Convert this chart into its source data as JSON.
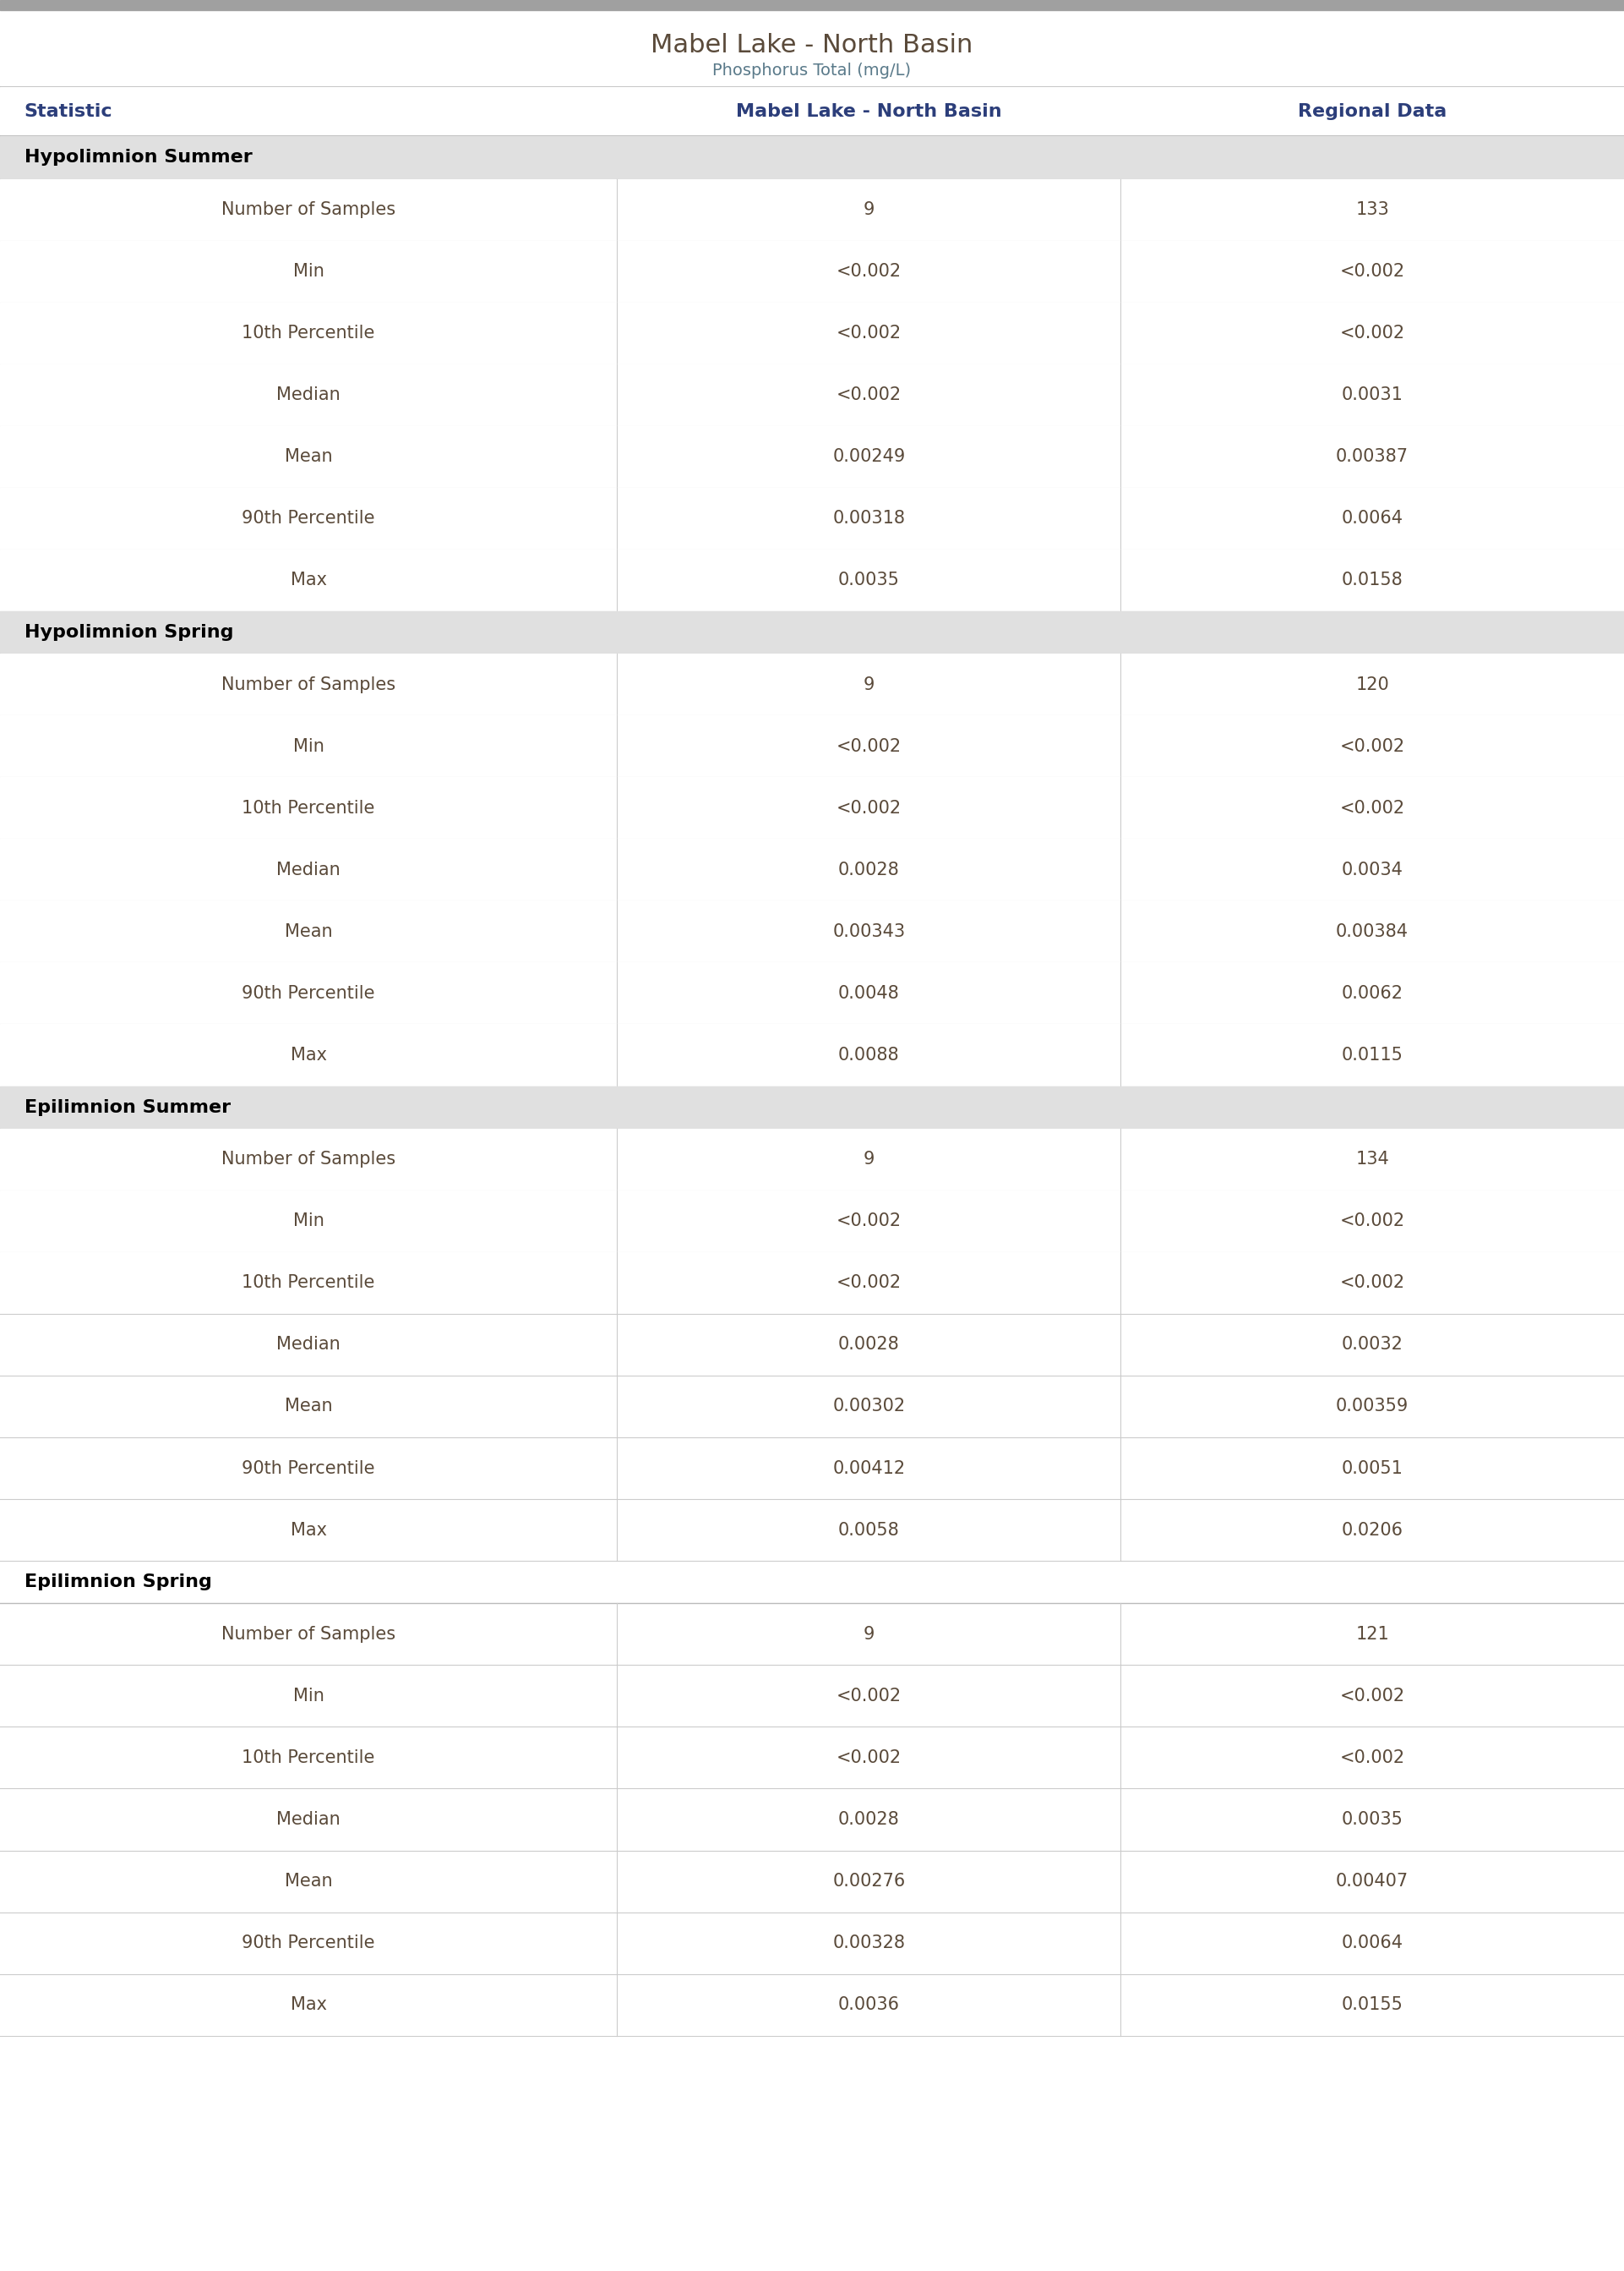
{
  "title": "Mabel Lake - North Basin",
  "subtitle": "Phosphorus Total (mg/L)",
  "col_headers": [
    "Statistic",
    "Mabel Lake - North Basin",
    "Regional Data"
  ],
  "sections": [
    {
      "name": "Hypolimnion Summer",
      "rows": [
        [
          "Number of Samples",
          "9",
          "133"
        ],
        [
          "Min",
          "<0.002",
          "<0.002"
        ],
        [
          "10th Percentile",
          "<0.002",
          "<0.002"
        ],
        [
          "Median",
          "<0.002",
          "0.0031"
        ],
        [
          "Mean",
          "0.00249",
          "0.00387"
        ],
        [
          "90th Percentile",
          "0.00318",
          "0.0064"
        ],
        [
          "Max",
          "0.0035",
          "0.0158"
        ]
      ]
    },
    {
      "name": "Hypolimnion Spring",
      "rows": [
        [
          "Number of Samples",
          "9",
          "120"
        ],
        [
          "Min",
          "<0.002",
          "<0.002"
        ],
        [
          "10th Percentile",
          "<0.002",
          "<0.002"
        ],
        [
          "Median",
          "0.0028",
          "0.0034"
        ],
        [
          "Mean",
          "0.00343",
          "0.00384"
        ],
        [
          "90th Percentile",
          "0.0048",
          "0.0062"
        ],
        [
          "Max",
          "0.0088",
          "0.0115"
        ]
      ]
    },
    {
      "name": "Epilimnion Summer",
      "rows": [
        [
          "Number of Samples",
          "9",
          "134"
        ],
        [
          "Min",
          "<0.002",
          "<0.002"
        ],
        [
          "10th Percentile",
          "<0.002",
          "<0.002"
        ],
        [
          "Median",
          "0.0028",
          "0.0032"
        ],
        [
          "Mean",
          "0.00302",
          "0.00359"
        ],
        [
          "90th Percentile",
          "0.00412",
          "0.0051"
        ],
        [
          "Max",
          "0.0058",
          "0.0206"
        ]
      ]
    },
    {
      "name": "Epilimnion Spring",
      "rows": [
        [
          "Number of Samples",
          "9",
          "121"
        ],
        [
          "Min",
          "<0.002",
          "<0.002"
        ],
        [
          "10th Percentile",
          "<0.002",
          "<0.002"
        ],
        [
          "Median",
          "0.0028",
          "0.0035"
        ],
        [
          "Mean",
          "0.00276",
          "0.00407"
        ],
        [
          "90th Percentile",
          "0.00328",
          "0.0064"
        ],
        [
          "Max",
          "0.0036",
          "0.0155"
        ]
      ]
    }
  ],
  "top_bar_color": "#a0a0a0",
  "section_header_bg": "#e0e0e0",
  "col_header_bg": "#ffffff",
  "data_row_bg": "#ffffff",
  "section_header_text_color": "#000000",
  "col_header_text_color": "#2c3e7a",
  "data_text_color": "#5a4a3a",
  "divider_color": "#cccccc",
  "title_color": "#5a4a3a",
  "subtitle_color": "#5a7a8a"
}
